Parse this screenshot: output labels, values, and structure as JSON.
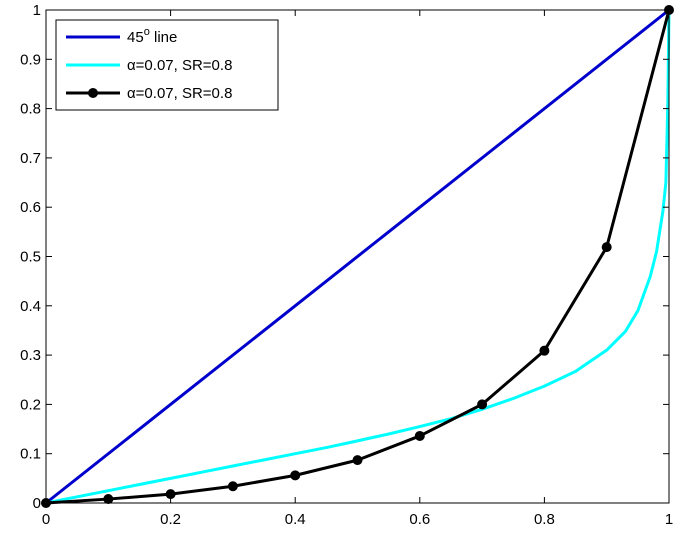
{
  "chart_data": {
    "type": "line",
    "title": "",
    "xlabel": "",
    "ylabel": "",
    "xlim": [
      0,
      1
    ],
    "ylim": [
      0,
      1
    ],
    "grid": false,
    "legend_position": "top-left",
    "x_ticks": [
      0,
      0.2,
      0.4,
      0.6,
      0.8,
      1
    ],
    "x_tick_labels": [
      "0",
      "0.2",
      "0.4",
      "0.6",
      "0.8",
      "1"
    ],
    "y_ticks": [
      0,
      0.1,
      0.2,
      0.3,
      0.4,
      0.5,
      0.6,
      0.7,
      0.8,
      0.9,
      1
    ],
    "y_tick_labels": [
      "0",
      "0.1",
      "0.2",
      "0.3",
      "0.4",
      "0.5",
      "0.6",
      "0.7",
      "0.8",
      "0.9",
      "1"
    ],
    "series": [
      {
        "name": "45o line",
        "name_main": "45",
        "name_sup": "o",
        "name_rest": " line",
        "color": "#0000cc",
        "markers": false,
        "points": [
          [
            0,
            0
          ],
          [
            1,
            1
          ]
        ]
      },
      {
        "name": "α=0.07, SR=0.8",
        "color": "#00ffff",
        "markers": false,
        "points": [
          [
            0,
            0
          ],
          [
            0.05,
            0.0125
          ],
          [
            0.1,
            0.025
          ],
          [
            0.15,
            0.0375
          ],
          [
            0.2,
            0.05
          ],
          [
            0.25,
            0.0625
          ],
          [
            0.3,
            0.075
          ],
          [
            0.35,
            0.0875
          ],
          [
            0.4,
            0.1
          ],
          [
            0.45,
            0.1125
          ],
          [
            0.5,
            0.126
          ],
          [
            0.55,
            0.14
          ],
          [
            0.6,
            0.155
          ],
          [
            0.65,
            0.171
          ],
          [
            0.7,
            0.19
          ],
          [
            0.75,
            0.212
          ],
          [
            0.8,
            0.237
          ],
          [
            0.85,
            0.267
          ],
          [
            0.9,
            0.31
          ],
          [
            0.93,
            0.348
          ],
          [
            0.95,
            0.39
          ],
          [
            0.97,
            0.46
          ],
          [
            0.98,
            0.51
          ],
          [
            0.99,
            0.59
          ],
          [
            0.995,
            0.65
          ],
          [
            0.998,
            0.8
          ],
          [
            1,
            1
          ]
        ]
      },
      {
        "name": "α=0.07, SR=0.8",
        "color": "#000000",
        "markers": true,
        "points": [
          [
            0,
            0
          ],
          [
            0.1,
            0.008
          ],
          [
            0.2,
            0.018
          ],
          [
            0.3,
            0.034
          ],
          [
            0.4,
            0.056
          ],
          [
            0.5,
            0.087
          ],
          [
            0.6,
            0.136
          ],
          [
            0.7,
            0.2
          ],
          [
            0.8,
            0.309
          ],
          [
            0.9,
            0.519
          ],
          [
            1,
            1
          ]
        ]
      }
    ]
  }
}
